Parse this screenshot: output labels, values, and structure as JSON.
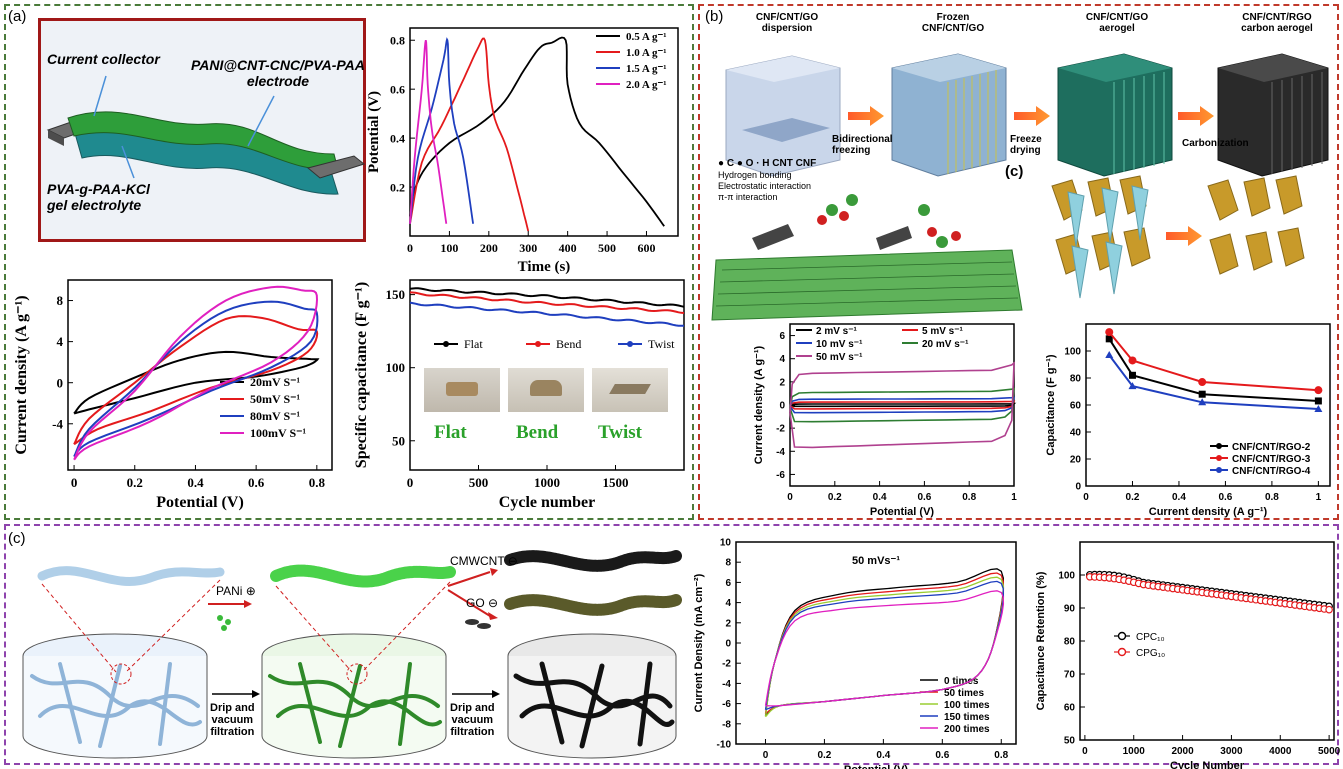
{
  "panels": {
    "a": "(a)",
    "b": "(b)",
    "c_top": "(c)",
    "c_bottom": "(c)"
  },
  "schematic_a": {
    "collector": "Current collector",
    "electrode": "PANI@CNT-CNC/PVA-PAA\nelectrode",
    "electrolyte": "PVA-g-PAA-KCl\ngel electrolyte"
  },
  "process_b": {
    "steps": [
      "CNF/CNT/GO\ndispersion",
      "Frozen\nCNF/CNT/GO",
      "CNF/CNT/GO\naerogel",
      "CNF/CNT/RGO\ncarbon aerogel"
    ],
    "arrows": [
      "Bidirectional\nfreezing",
      "Freeze\ndrying",
      "Carbonization"
    ],
    "legend_atoms": "● C  ● O  · H  CNT  CNF",
    "interactions": [
      "Hydrogen bonding",
      "Electrostatic interaction",
      "π-π interaction"
    ]
  },
  "process_c": {
    "pani": "PANi ⊕",
    "cmwcnt": "CMWCNT ⊖",
    "go": "GO ⊖",
    "drip1": "Drip and\nvacuum\nfiltration",
    "drip2": "Drip and\nvacuum\nfiltration"
  },
  "photos": [
    "Flat",
    "Bend",
    "Twist"
  ],
  "chart_data": [
    {
      "id": "gcd",
      "type": "line",
      "xlabel": "Time (s)",
      "ylabel": "Potential (V)",
      "xlim": [
        0,
        680
      ],
      "ylim": [
        0,
        0.85
      ],
      "xticks": [
        0,
        100,
        200,
        300,
        400,
        500,
        600
      ],
      "yticks": [
        0.2,
        0.4,
        0.6,
        0.8
      ],
      "series": [
        {
          "name": "0.5 A g⁻¹",
          "color": "#000000",
          "points": [
            [
              0,
              0.08
            ],
            [
              10,
              0.18
            ],
            [
              40,
              0.28
            ],
            [
              100,
              0.38
            ],
            [
              180,
              0.46
            ],
            [
              240,
              0.55
            ],
            [
              290,
              0.68
            ],
            [
              330,
              0.77
            ],
            [
              360,
              0.79
            ],
            [
              395,
              0.8
            ],
            [
              400,
              0.62
            ],
            [
              430,
              0.46
            ],
            [
              480,
              0.38
            ],
            [
              540,
              0.26
            ],
            [
              600,
              0.14
            ],
            [
              645,
              0.04
            ]
          ]
        },
        {
          "name": "1.0 A g⁻¹",
          "color": "#e41a1c",
          "points": [
            [
              0,
              0.05
            ],
            [
              30,
              0.3
            ],
            [
              80,
              0.45
            ],
            [
              130,
              0.62
            ],
            [
              170,
              0.76
            ],
            [
              190,
              0.8
            ],
            [
              200,
              0.62
            ],
            [
              215,
              0.48
            ],
            [
              245,
              0.36
            ],
            [
              275,
              0.18
            ],
            [
              300,
              0.02
            ]
          ]
        },
        {
          "name": "1.5 A g⁻¹",
          "color": "#1f3fbf",
          "points": [
            [
              0,
              0.05
            ],
            [
              20,
              0.32
            ],
            [
              55,
              0.52
            ],
            [
              85,
              0.72
            ],
            [
              95,
              0.8
            ],
            [
              100,
              0.62
            ],
            [
              112,
              0.46
            ],
            [
              135,
              0.32
            ],
            [
              160,
              0.05
            ]
          ]
        },
        {
          "name": "2.0 A g⁻¹",
          "color": "#e020c0",
          "points": [
            [
              0,
              0.05
            ],
            [
              12,
              0.32
            ],
            [
              30,
              0.6
            ],
            [
              40,
              0.8
            ],
            [
              45,
              0.62
            ],
            [
              55,
              0.44
            ],
            [
              72,
              0.28
            ],
            [
              92,
              0.05
            ]
          ]
        }
      ]
    },
    {
      "id": "cv_a",
      "type": "line",
      "xlabel": "Potential (V)",
      "ylabel": "Current density (A g⁻¹)",
      "xlim": [
        -0.02,
        0.85
      ],
      "ylim": [
        -8.5,
        10
      ],
      "xticks": [
        0,
        0.2,
        0.4,
        0.6,
        0.8
      ],
      "yticks": [
        -4,
        0,
        4,
        8
      ],
      "series": [
        {
          "name": "20mV S⁻¹",
          "color": "#000000",
          "points": [
            [
              0,
              -3
            ],
            [
              0.05,
              -1.5
            ],
            [
              0.2,
              0.5
            ],
            [
              0.35,
              2.2
            ],
            [
              0.5,
              3.0
            ],
            [
              0.65,
              2.5
            ],
            [
              0.78,
              2.3
            ],
            [
              0.8,
              2.2
            ],
            [
              0.75,
              1.5
            ],
            [
              0.6,
              0.6
            ],
            [
              0.4,
              0
            ],
            [
              0.2,
              -1.5
            ],
            [
              0.05,
              -2.6
            ],
            [
              0,
              -3
            ]
          ]
        },
        {
          "name": "50mV S⁻¹",
          "color": "#e41a1c",
          "points": [
            [
              0,
              -6
            ],
            [
              0.05,
              -3.5
            ],
            [
              0.2,
              0
            ],
            [
              0.35,
              3.5
            ],
            [
              0.5,
              6.2
            ],
            [
              0.62,
              6.3
            ],
            [
              0.74,
              5.2
            ],
            [
              0.8,
              5
            ],
            [
              0.77,
              3
            ],
            [
              0.65,
              1.2
            ],
            [
              0.45,
              -0.5
            ],
            [
              0.25,
              -2.8
            ],
            [
              0.08,
              -4.5
            ],
            [
              0,
              -6
            ]
          ]
        },
        {
          "name": "80mV S⁻¹",
          "color": "#1f3fbf",
          "points": [
            [
              0,
              -7.2
            ],
            [
              0.05,
              -4.5
            ],
            [
              0.2,
              -0.5
            ],
            [
              0.35,
              4
            ],
            [
              0.5,
              7
            ],
            [
              0.65,
              7.9
            ],
            [
              0.76,
              7.2
            ],
            [
              0.8,
              6.8
            ],
            [
              0.78,
              4
            ],
            [
              0.65,
              1.5
            ],
            [
              0.45,
              -0.8
            ],
            [
              0.25,
              -3.5
            ],
            [
              0.05,
              -5.8
            ],
            [
              0,
              -7.2
            ]
          ]
        },
        {
          "name": "100mV S⁻¹",
          "color": "#e020c0",
          "points": [
            [
              0,
              -7.5
            ],
            [
              0.05,
              -4.8
            ],
            [
              0.2,
              -0.8
            ],
            [
              0.35,
              4.5
            ],
            [
              0.5,
              8
            ],
            [
              0.65,
              9.3
            ],
            [
              0.75,
              9
            ],
            [
              0.8,
              8.5
            ],
            [
              0.77,
              5
            ],
            [
              0.65,
              2
            ],
            [
              0.45,
              -0.6
            ],
            [
              0.25,
              -3.8
            ],
            [
              0.05,
              -6.2
            ],
            [
              0,
              -7.5
            ]
          ]
        }
      ]
    },
    {
      "id": "cap_a",
      "type": "line",
      "xlabel": "Cycle number",
      "ylabel": "Specific capacitance (F g⁻¹)",
      "xlim": [
        0,
        2000
      ],
      "ylim": [
        30,
        160
      ],
      "xticks": [
        0,
        500,
        1000,
        1500
      ],
      "yticks": [
        50,
        100,
        150
      ],
      "series": [
        {
          "name": "Flat",
          "color": "#000000",
          "points": [
            [
              0,
              154
            ],
            [
              1000,
              149
            ],
            [
              2000,
              142
            ]
          ]
        },
        {
          "name": "Bend",
          "color": "#e41a1c",
          "points": [
            [
              0,
              151
            ],
            [
              1000,
              144
            ],
            [
              2000,
              138
            ]
          ]
        },
        {
          "name": "Twist",
          "color": "#1f3fbf",
          "points": [
            [
              0,
              144
            ],
            [
              1000,
              137
            ],
            [
              2000,
              129
            ]
          ]
        }
      ]
    },
    {
      "id": "cv_b",
      "type": "line",
      "xlabel": "Potential (V)",
      "ylabel": "Current density (A g⁻¹)",
      "xlim": [
        0,
        1.0
      ],
      "ylim": [
        -7,
        7
      ],
      "xticks": [
        0,
        0.2,
        0.4,
        0.6,
        0.8,
        1.0
      ],
      "yticks": [
        -6,
        -4,
        -2,
        0,
        2,
        4,
        6
      ],
      "series": [
        {
          "name": "2 mV s⁻¹",
          "color": "#000000",
          "amp": 0.1
        },
        {
          "name": "5 mV s⁻¹",
          "color": "#e41a1c",
          "amp": 0.3
        },
        {
          "name": "10 mV s⁻¹",
          "color": "#1f3fbf",
          "amp": 0.6
        },
        {
          "name": "20 mV s⁻¹",
          "color": "#2e7d32",
          "amp": 1.3
        },
        {
          "name": "50 mV s⁻¹",
          "color": "#b0418f",
          "amp": 3.3
        }
      ]
    },
    {
      "id": "cap_b",
      "type": "line",
      "xlabel": "Current density (A g⁻¹)",
      "ylabel": "Capacitance (F g⁻¹)",
      "xlim": [
        0,
        1.05
      ],
      "ylim": [
        0,
        120
      ],
      "xticks": [
        0,
        0.2,
        0.4,
        0.6,
        0.8,
        1.0
      ],
      "yticks": [
        0,
        20,
        40,
        60,
        80,
        100
      ],
      "series": [
        {
          "name": "CNF/CNT/RGO-2",
          "color": "#000000",
          "marker": "square",
          "points": [
            [
              0.1,
              109
            ],
            [
              0.2,
              82
            ],
            [
              0.5,
              68
            ],
            [
              1.0,
              63
            ]
          ]
        },
        {
          "name": "CNF/CNT/RGO-3",
          "color": "#e41a1c",
          "marker": "circle",
          "points": [
            [
              0.1,
              114
            ],
            [
              0.2,
              93
            ],
            [
              0.5,
              77
            ],
            [
              1.0,
              71
            ]
          ]
        },
        {
          "name": "CNF/CNT/RGO-4",
          "color": "#1f3fbf",
          "marker": "triangle",
          "points": [
            [
              0.1,
              97
            ],
            [
              0.2,
              74
            ],
            [
              0.5,
              62
            ],
            [
              1.0,
              57
            ]
          ]
        }
      ]
    },
    {
      "id": "cv_c",
      "type": "line",
      "title": "50 mVs⁻¹",
      "xlabel": "Potential (V)",
      "ylabel": "Current Density (mA cm⁻²)",
      "xlim": [
        -0.1,
        0.85
      ],
      "ylim": [
        -10,
        10
      ],
      "xticks": [
        0,
        0.2,
        0.4,
        0.6,
        0.8
      ],
      "yticks": [
        -10,
        -8,
        -6,
        -4,
        -2,
        0,
        2,
        4,
        6,
        8,
        10
      ],
      "series": [
        {
          "name": "0    times",
          "color": "#000000",
          "top": 6.7,
          "bot": -7.2
        },
        {
          "name": "50   times",
          "color": "#e41a1c",
          "top": 6.3,
          "bot": -7.0
        },
        {
          "name": "100  times",
          "color": "#9acd32",
          "top": 5.9,
          "bot": -7.3
        },
        {
          "name": "150  times",
          "color": "#1f3fbf",
          "top": 5.5,
          "bot": -6.6
        },
        {
          "name": "200  times",
          "color": "#e020c0",
          "top": 4.6,
          "bot": -6.2
        }
      ]
    },
    {
      "id": "ret_c",
      "type": "scatter",
      "xlabel": "Cycle Number",
      "ylabel": "Capacitance Retention (%)",
      "xlim": [
        -100,
        5100
      ],
      "ylim": [
        50,
        110
      ],
      "xticks": [
        0,
        1000,
        2000,
        3000,
        4000,
        5000
      ],
      "yticks": [
        50,
        60,
        70,
        80,
        90,
        100
      ],
      "series": [
        {
          "name": "CPC₁₀",
          "color": "#000000",
          "start": 100,
          "end": 90.5
        },
        {
          "name": "CPG₁₀",
          "color": "#e41a1c",
          "start": 99.5,
          "end": 89.5
        }
      ]
    }
  ]
}
